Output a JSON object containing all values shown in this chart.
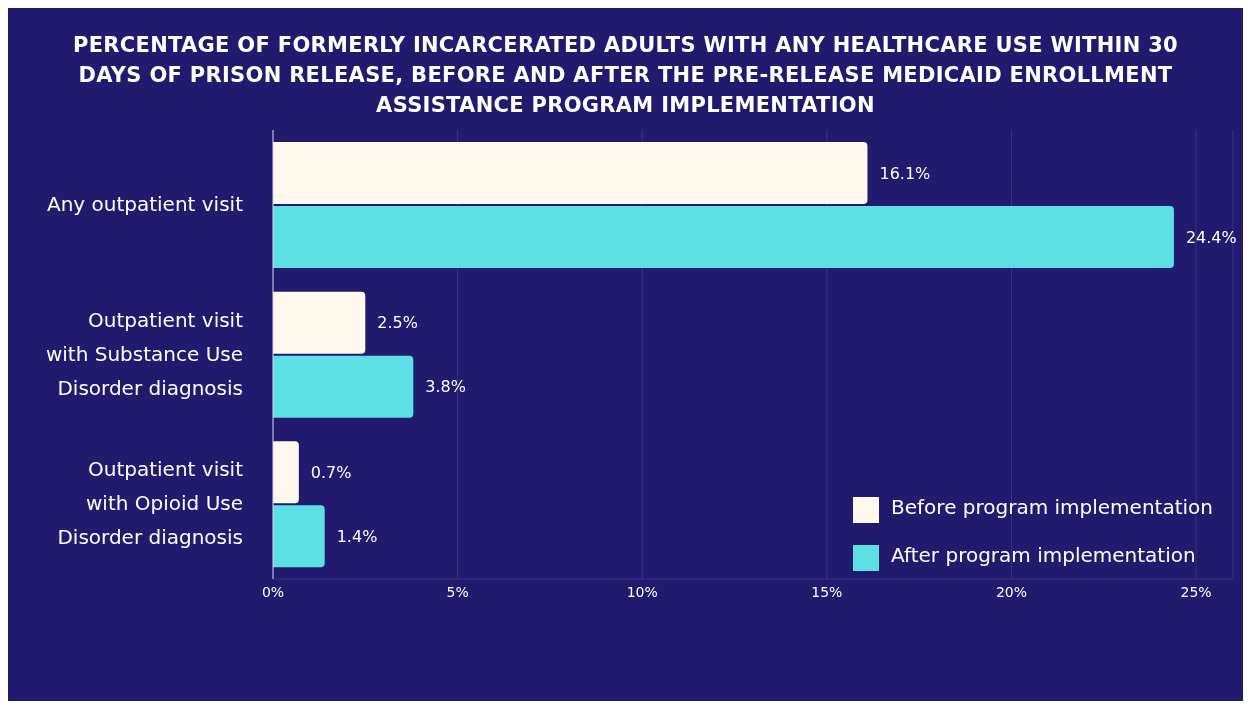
{
  "chart_data": {
    "type": "bar",
    "orientation": "horizontal",
    "title": "PERCENTAGE OF FORMERLY INCARCERATED ADULTS WITH ANY HEALTHCARE USE WITHIN 30 DAYS OF PRISON RELEASE, BEFORE AND AFTER THE PRE-RELEASE MEDICAID ENROLLMENT ASSISTANCE PROGRAM IMPLEMENTATION",
    "categories": [
      "Any outpatient visit",
      "Outpatient visit with Substance Use Disorder diagnosis",
      "Outpatient visit with Opioid Use Disorder diagnosis"
    ],
    "series": [
      {
        "name": "Before program implementation",
        "color": "#fff8ec",
        "values": [
          16.1,
          2.5,
          0.7
        ],
        "value_labels": [
          "16.1%",
          "2.5%",
          "0.7%"
        ]
      },
      {
        "name": "After program implementation",
        "color": "#5ce0e6",
        "values": [
          24.4,
          3.8,
          1.4
        ],
        "value_labels": [
          "24.4%",
          "3.8%",
          "1.4%"
        ]
      }
    ],
    "xlim": [
      0,
      26
    ],
    "xticks": [
      {
        "value": 0,
        "label": "0%"
      },
      {
        "value": 5,
        "label": "5%"
      },
      {
        "value": 10,
        "label": "10%"
      },
      {
        "value": 15,
        "label": "15%"
      },
      {
        "value": 20,
        "label": "20%"
      },
      {
        "value": 25,
        "label": "25%"
      }
    ],
    "grid": "x",
    "legend": "bottom right"
  }
}
